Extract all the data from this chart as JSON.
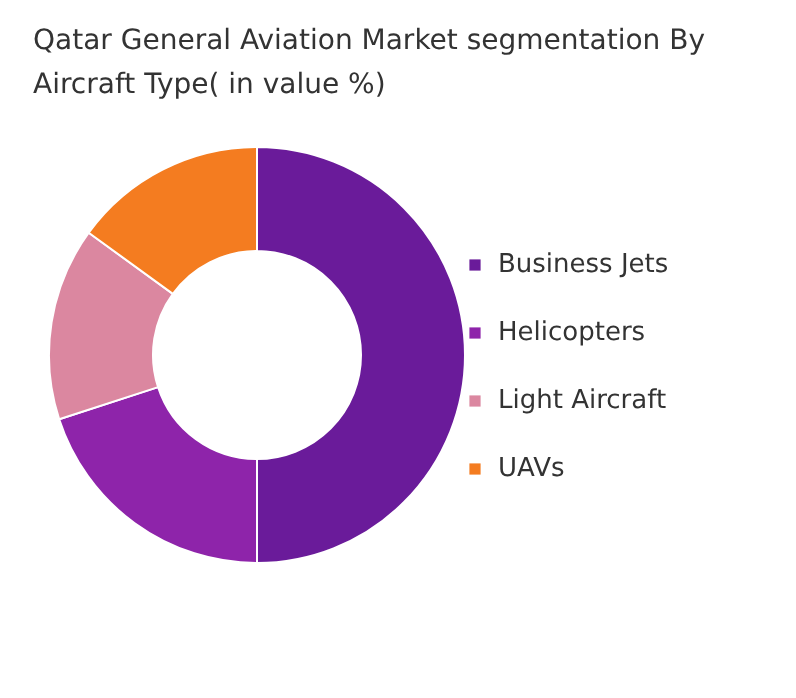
{
  "chart_data": {
    "type": "donut",
    "title": "Qatar General Aviation Market segmentation By Aircraft Type( in value %)",
    "categories": [
      "Business Jets",
      "Helicopters",
      "Light Aircraft",
      "UAVs"
    ],
    "values": [
      50,
      20,
      15,
      15
    ],
    "colors": [
      "#6a1b9a",
      "#8e24aa",
      "#db87a0",
      "#f47c20"
    ],
    "legend": "right"
  }
}
